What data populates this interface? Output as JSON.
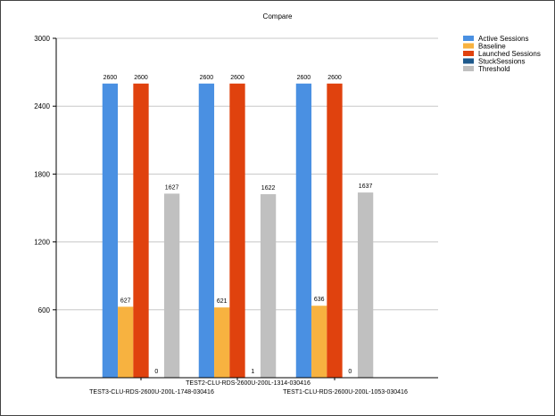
{
  "chart_data": {
    "type": "bar",
    "title": "Compare",
    "xlabel": "",
    "ylabel": "",
    "categories": [
      "TEST3-CLU-RDS-2600U-200L-1748-030416",
      "TEST2-CLU-RDS-2600U-200L-1314-030416",
      "TEST1-CLU-RDS-2600U-200L-1053-030416"
    ],
    "series": [
      {
        "name": "Active Sessions",
        "color": "#4a90e2",
        "values": [
          2600,
          2600,
          2600
        ],
        "labels": [
          "2600",
          "2600",
          "2600"
        ]
      },
      {
        "name": "Baseline",
        "color": "#f7b240",
        "values": [
          627,
          621,
          636
        ],
        "labels": [
          "627",
          "621",
          "636"
        ]
      },
      {
        "name": "Launched Sessions",
        "color": "#e0420e",
        "values": [
          2600,
          2600,
          2600
        ],
        "labels": [
          "2600",
          "2600",
          "2600"
        ]
      },
      {
        "name": "StuckSessions",
        "color": "#1f5a8c",
        "values": [
          0,
          1,
          0
        ],
        "labels": [
          "0",
          "1",
          "0"
        ]
      },
      {
        "name": "Threshold",
        "color": "#c0c0c0",
        "values": [
          1627,
          1622,
          1637
        ],
        "labels": [
          "1627",
          "1622",
          "1637"
        ]
      }
    ],
    "ylim": [
      0,
      3000
    ],
    "yticks": [
      600,
      1200,
      1800,
      2400,
      3000
    ],
    "ytick_labels": [
      "600",
      "1200",
      "1800",
      "2400",
      "3000"
    ],
    "grid": true,
    "legend_position": "top-right"
  }
}
